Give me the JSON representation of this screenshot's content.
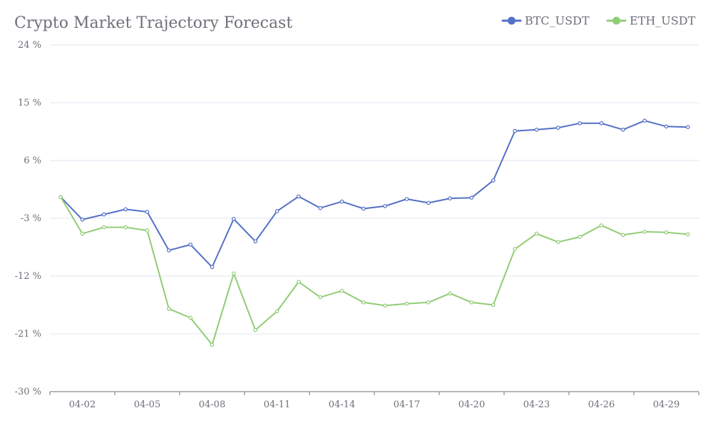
{
  "chart_data": {
    "type": "line",
    "title": "Crypto Market Trajectory Forecast",
    "xlabel": "",
    "ylabel": "",
    "ylim": [
      -30,
      24
    ],
    "yticks": [
      24,
      15,
      6,
      -3,
      -12,
      -21,
      -30
    ],
    "ytick_suffix": " %",
    "x": [
      "04-01",
      "04-02",
      "04-03",
      "04-04",
      "04-05",
      "04-06",
      "04-07",
      "04-08",
      "04-09",
      "04-10",
      "04-11",
      "04-12",
      "04-13",
      "04-14",
      "04-15",
      "04-16",
      "04-17",
      "04-18",
      "04-19",
      "04-20",
      "04-21",
      "04-22",
      "04-23",
      "04-24",
      "04-25",
      "04-26",
      "04-27",
      "04-28",
      "04-29",
      "04-30"
    ],
    "xtick_labels": [
      "04-02",
      "04-05",
      "04-08",
      "04-11",
      "04-14",
      "04-17",
      "04-20",
      "04-23",
      "04-26",
      "04-29"
    ],
    "grid": true,
    "legend_position": "top-right",
    "series": [
      {
        "name": "BTC_USDT",
        "color": "#5470c6",
        "values": [
          0.3,
          -3.2,
          -2.4,
          -1.6,
          -2.0,
          -8.0,
          -7.1,
          -10.6,
          -3.1,
          -6.6,
          -1.9,
          0.4,
          -1.4,
          -0.4,
          -1.5,
          -1.1,
          0.0,
          -0.6,
          0.1,
          0.2,
          2.9,
          10.6,
          10.8,
          11.1,
          11.8,
          11.8,
          10.8,
          12.2,
          11.3,
          11.2
        ]
      },
      {
        "name": "ETH_USDT",
        "color": "#91cc75",
        "values": [
          0.3,
          -5.4,
          -4.4,
          -4.4,
          -4.9,
          -17.1,
          -18.5,
          -22.7,
          -11.6,
          -20.4,
          -17.5,
          -12.9,
          -15.3,
          -14.3,
          -16.1,
          -16.6,
          -16.3,
          -16.1,
          -14.7,
          -16.1,
          -16.5,
          -7.8,
          -5.4,
          -6.7,
          -5.9,
          -4.1,
          -5.6,
          -5.1,
          -5.2,
          -5.5
        ]
      }
    ]
  }
}
